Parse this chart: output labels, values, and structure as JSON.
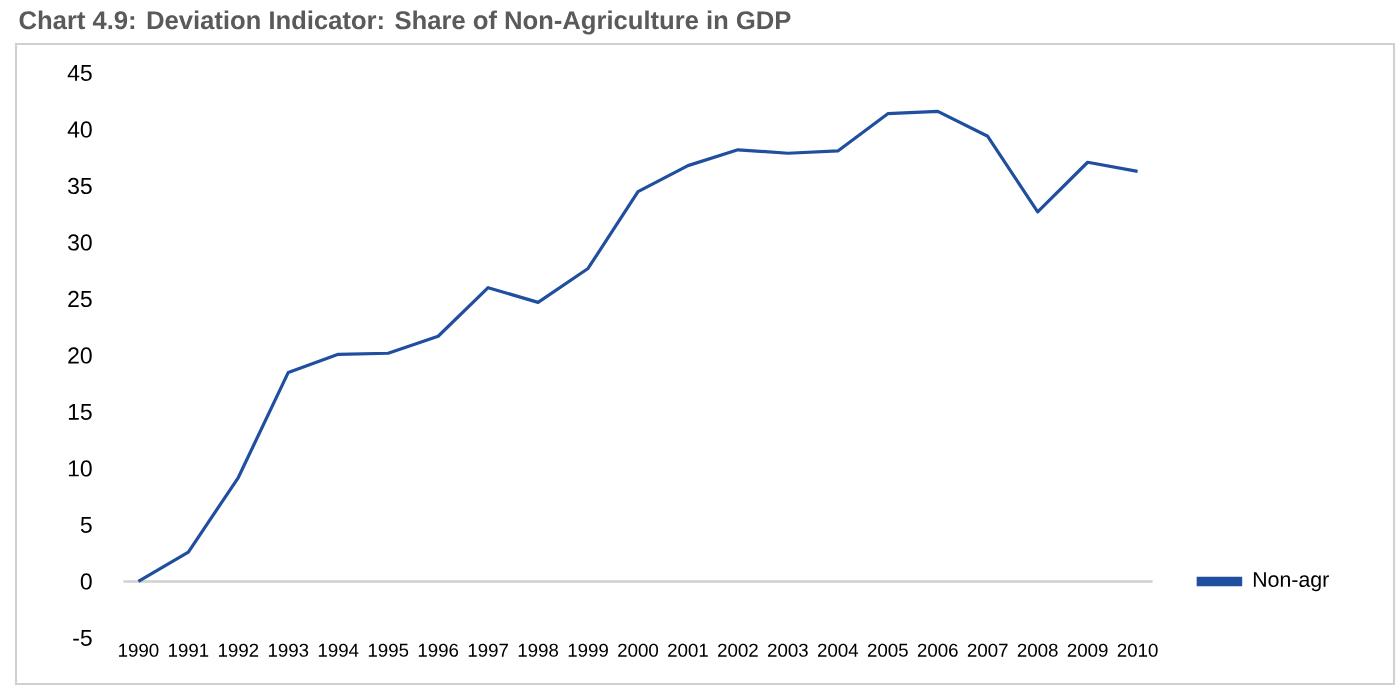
{
  "chart_data": {
    "type": "line",
    "title": "Chart 4.9: Deviation Indicator: Share of Non-Agriculture in GDP",
    "categories": [
      "1990",
      "1991",
      "1992",
      "1993",
      "1994",
      "1995",
      "1996",
      "1997",
      "1998",
      "1999",
      "2000",
      "2001",
      "2002",
      "2003",
      "2004",
      "2005",
      "2006",
      "2007",
      "2008",
      "2009",
      "2010"
    ],
    "series": [
      {
        "name": "Non-agr",
        "color": "#1f4f9e",
        "values": [
          0,
          2.6,
          9.2,
          18.5,
          20.1,
          20.2,
          21.7,
          26.0,
          24.7,
          27.7,
          34.5,
          36.8,
          38.2,
          37.9,
          38.1,
          41.4,
          41.6,
          39.4,
          32.7,
          37.1,
          36.3
        ]
      }
    ],
    "ylim": [
      -5,
      45
    ],
    "yticks": [
      -5,
      0,
      5,
      10,
      15,
      20,
      25,
      30,
      35,
      40,
      45
    ],
    "ref_lines": [
      {
        "axis": "y",
        "value": 0,
        "color": "#d0d0d0"
      }
    ],
    "grid": false,
    "legend": "right",
    "marker": "none",
    "line_style": "solid"
  }
}
